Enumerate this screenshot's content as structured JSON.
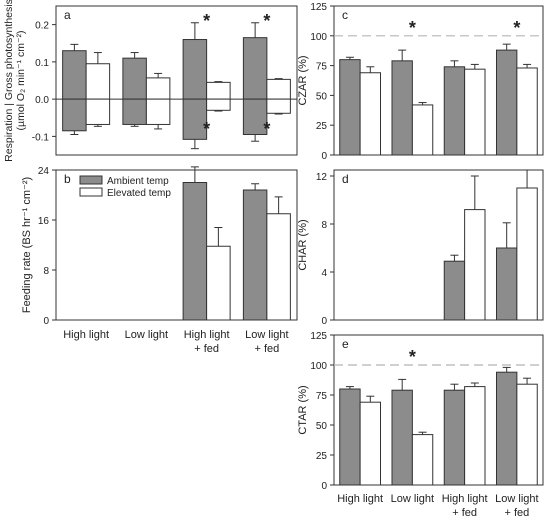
{
  "colors": {
    "ambient": "#8c8c8c",
    "elevated": "#ffffff",
    "stroke": "#333333",
    "dashed": "#b5b5b5"
  },
  "group_labels": [
    [
      "High light"
    ],
    [
      "Low light"
    ],
    [
      "High light",
      "+ fed"
    ],
    [
      "Low light",
      "+ fed"
    ]
  ],
  "chart_data": [
    {
      "panel": "a",
      "type": "bar",
      "ylabel": [
        "Respiration | Gross photosynthesis",
        "(µmol O₂ min⁻¹ cm⁻²)"
      ],
      "ylim": [
        -0.15,
        0.25
      ],
      "yticks": [
        "-0.1",
        "0.0",
        "0.1",
        "0.2"
      ],
      "categories": [
        "High light",
        "Low light",
        "High light + fed",
        "Low light + fed"
      ],
      "series": [
        {
          "name": "Ambient temp",
          "values": [
            0.13,
            0.11,
            0.16,
            0.165
          ],
          "errors": [
            0.017,
            0.015,
            0.045,
            0.04
          ]
        },
        {
          "name": "Elevated temp",
          "values": [
            0.095,
            0.057,
            0.045,
            0.053
          ],
          "errors": [
            0.03,
            0.012,
            0.002,
            0.002
          ]
        }
      ],
      "negative_series": [
        {
          "name": "Ambient temp",
          "values": [
            -0.085,
            -0.068,
            -0.108,
            -0.095
          ],
          "errors": [
            0.01,
            0.005,
            0.025,
            0.018
          ]
        },
        {
          "name": "Elevated temp",
          "values": [
            -0.068,
            -0.068,
            -0.03,
            -0.038
          ],
          "errors": [
            0.005,
            0.012,
            0.002,
            0.002
          ]
        }
      ],
      "annotations": [
        {
          "text": "*",
          "group": 2,
          "position": "top"
        },
        {
          "text": "*",
          "group": 2,
          "position": "bottom"
        },
        {
          "text": "*",
          "group": 3,
          "position": "top"
        },
        {
          "text": "*",
          "group": 3,
          "position": "bottom"
        }
      ]
    },
    {
      "panel": "b",
      "type": "bar",
      "ylabel": "Feeding rate (BS hr⁻¹ cm⁻²)",
      "ylim": [
        0,
        24
      ],
      "yticks": [
        "0",
        "8",
        "16",
        "24"
      ],
      "categories": [
        "High light",
        "Low light",
        "High light + fed",
        "Low light + fed"
      ],
      "series": [
        {
          "name": "Ambient temp",
          "values": [
            null,
            null,
            22,
            20.8
          ],
          "errors": [
            null,
            null,
            2.5,
            1
          ]
        },
        {
          "name": "Elevated temp",
          "values": [
            null,
            null,
            11.8,
            17
          ],
          "errors": [
            null,
            null,
            3,
            2.7
          ]
        }
      ],
      "legend": {
        "entries": [
          "Ambient temp",
          "Elevated temp"
        ],
        "placement": "top-left"
      }
    },
    {
      "panel": "c",
      "type": "bar",
      "ylabel": "CZAR (%)",
      "ylim": [
        0,
        125
      ],
      "yticks": [
        "0",
        "25",
        "50",
        "75",
        "100",
        "125"
      ],
      "reference_line": 100,
      "categories": [
        "High light",
        "Low light",
        "High light + fed",
        "Low light + fed"
      ],
      "series": [
        {
          "name": "Ambient temp",
          "values": [
            80,
            79,
            74,
            88
          ],
          "errors": [
            2,
            9,
            5,
            5
          ]
        },
        {
          "name": "Elevated temp",
          "values": [
            69,
            42,
            72,
            73
          ],
          "errors": [
            5,
            2,
            4,
            3
          ]
        }
      ],
      "annotations": [
        {
          "text": "*",
          "group": 1
        },
        {
          "text": "*",
          "group": 3
        }
      ]
    },
    {
      "panel": "d",
      "type": "bar",
      "ylabel": "CHAR (%)",
      "ylim": [
        0,
        12.5
      ],
      "yticks": [
        "0",
        "4",
        "8",
        "12"
      ],
      "categories": [
        "High light",
        "Low light",
        "High light + fed",
        "Low light + fed"
      ],
      "series": [
        {
          "name": "Ambient temp",
          "values": [
            null,
            null,
            4.9,
            6
          ],
          "errors": [
            null,
            null,
            0.5,
            2.1
          ]
        },
        {
          "name": "Elevated temp",
          "values": [
            null,
            null,
            9.2,
            11
          ],
          "errors": [
            null,
            null,
            2.8,
            1.5
          ]
        }
      ]
    },
    {
      "panel": "e",
      "type": "bar",
      "ylabel": "CTAR (%)",
      "ylim": [
        0,
        125
      ],
      "yticks": [
        "0",
        "25",
        "50",
        "75",
        "100",
        "125"
      ],
      "reference_line": 100,
      "categories": [
        "High light",
        "Low light",
        "High light + fed",
        "Low light + fed"
      ],
      "series": [
        {
          "name": "Ambient temp",
          "values": [
            80,
            79,
            79,
            94
          ],
          "errors": [
            2,
            9,
            5,
            4
          ]
        },
        {
          "name": "Elevated temp",
          "values": [
            69,
            42,
            82,
            84
          ],
          "errors": [
            5,
            2,
            3,
            5
          ]
        }
      ],
      "annotations": [
        {
          "text": "*",
          "group": 1
        }
      ]
    }
  ]
}
